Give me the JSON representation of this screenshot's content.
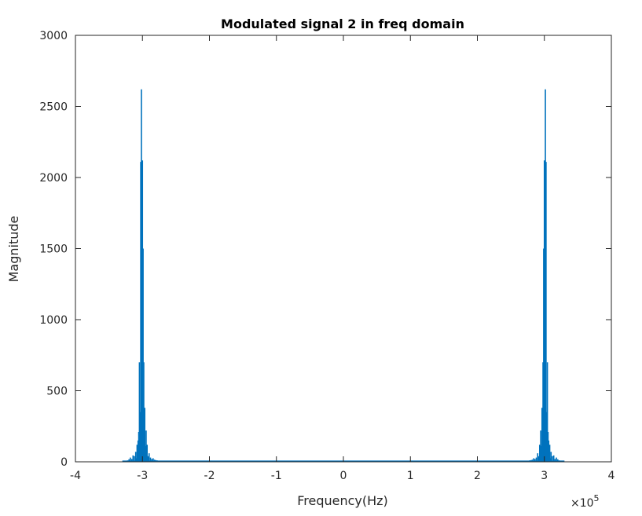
{
  "chart_data": {
    "type": "line",
    "title": "Modulated signal 2 in freq domain",
    "xlabel": "Frequency(Hz)",
    "ylabel": "Magnitude",
    "xlim": [
      -4,
      4
    ],
    "ylim": [
      0,
      3000
    ],
    "x_multiplier": "×10",
    "x_multiplier_exponent": "5",
    "xticks": [
      -4,
      -3,
      -2,
      -1,
      0,
      1,
      2,
      3,
      4
    ],
    "yticks": [
      0,
      500,
      1000,
      1500,
      2000,
      2500,
      3000
    ],
    "grid": false,
    "series_color": "#0072BD",
    "series": [
      {
        "x": [
          -3.3,
          -3.25,
          -3.22,
          -3.2,
          -3.18,
          -3.16,
          -3.14,
          -3.12,
          -3.1,
          -3.09,
          -3.08,
          -3.07,
          -3.065,
          -3.06,
          -3.055,
          -3.05,
          -3.045,
          -3.04,
          -3.035,
          -3.03,
          -3.025,
          -3.02,
          -3.015,
          -3.01,
          -3.005,
          -3.0,
          -2.995,
          -2.99,
          -2.985,
          -2.98,
          -2.975,
          -2.97,
          -2.965,
          -2.96,
          -2.955,
          -2.95,
          -2.945,
          -2.94,
          -2.935,
          -2.93,
          -2.92,
          -2.91,
          -2.9,
          -2.88,
          -2.86,
          -2.84,
          -2.82,
          -2.8,
          -2.78,
          -2.75,
          -2.7,
          -2.0,
          -1.0,
          0.0,
          1.0,
          2.0,
          2.7,
          2.75,
          2.78,
          2.8,
          2.82,
          2.84,
          2.86,
          2.88,
          2.9,
          2.91,
          2.92,
          2.93,
          2.935,
          2.94,
          2.945,
          2.95,
          2.955,
          2.96,
          2.965,
          2.97,
          2.975,
          2.98,
          2.985,
          2.99,
          2.995,
          3.0,
          3.005,
          3.01,
          3.015,
          3.02,
          3.025,
          3.03,
          3.035,
          3.04,
          3.045,
          3.05,
          3.055,
          3.06,
          3.065,
          3.07,
          3.08,
          3.09,
          3.1,
          3.12,
          3.14,
          3.16,
          3.18,
          3.2,
          3.22,
          3.25,
          3.3
        ],
        "y": [
          2,
          5,
          10,
          18,
          30,
          20,
          45,
          40,
          70,
          25,
          120,
          60,
          150,
          80,
          210,
          130,
          700,
          280,
          200,
          350,
          2110,
          600,
          2620,
          1600,
          700,
          2120,
          500,
          1500,
          250,
          700,
          180,
          140,
          380,
          90,
          110,
          70,
          220,
          50,
          60,
          120,
          40,
          35,
          60,
          30,
          20,
          25,
          15,
          12,
          10,
          8,
          5,
          4,
          4,
          4,
          4,
          4,
          5,
          8,
          10,
          12,
          15,
          25,
          20,
          30,
          60,
          35,
          40,
          120,
          60,
          50,
          220,
          70,
          110,
          90,
          380,
          140,
          180,
          700,
          250,
          1500,
          500,
          2120,
          700,
          1600,
          2620,
          600,
          2110,
          350,
          200,
          280,
          700,
          130,
          210,
          80,
          150,
          60,
          120,
          25,
          70,
          40,
          45,
          20,
          30,
          18,
          10,
          5,
          2
        ]
      }
    ]
  }
}
